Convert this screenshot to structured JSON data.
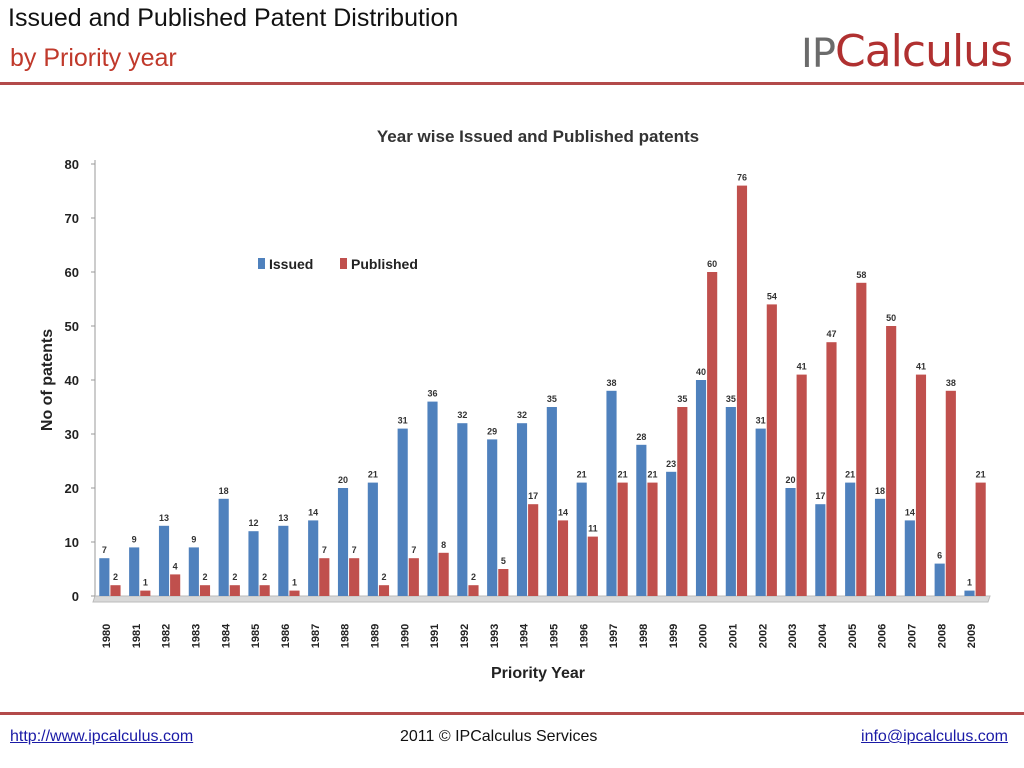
{
  "header": {
    "title": "Issued and Published Patent Distribution",
    "subtitle": "by Priority year",
    "logo": {
      "ip": "IP",
      "rest": "Calculus"
    }
  },
  "footer": {
    "website": "http://www.ipcalculus.com",
    "copyright": "2011 © IPCalculus Services",
    "email": "info@ipcalculus.com"
  },
  "colors": {
    "issued": "#4f81bd",
    "published": "#c0504d",
    "accent": "#b34a4a"
  },
  "chart_data": {
    "type": "bar",
    "title": "Year wise Issued and Published patents",
    "xlabel": "Priority Year",
    "ylabel": "No of patents",
    "ylim": [
      0,
      80
    ],
    "yticks": [
      0,
      10,
      20,
      30,
      40,
      50,
      60,
      70,
      80
    ],
    "grid": false,
    "legend_position": "top-left",
    "categories": [
      "1980",
      "1981",
      "1982",
      "1983",
      "1984",
      "1985",
      "1986",
      "1987",
      "1988",
      "1989",
      "1990",
      "1991",
      "1992",
      "1993",
      "1994",
      "1995",
      "1996",
      "1997",
      "1998",
      "1999",
      "2000",
      "2001",
      "2002",
      "2003",
      "2004",
      "2005",
      "2006",
      "2007",
      "2008",
      "2009"
    ],
    "series": [
      {
        "name": "Issued",
        "values": [
          7,
          9,
          13,
          9,
          18,
          12,
          13,
          14,
          20,
          21,
          31,
          36,
          32,
          29,
          32,
          35,
          21,
          38,
          28,
          23,
          40,
          35,
          31,
          20,
          17,
          21,
          18,
          14,
          6,
          1
        ]
      },
      {
        "name": "Published",
        "values": [
          2,
          1,
          4,
          2,
          2,
          2,
          1,
          7,
          7,
          2,
          7,
          8,
          2,
          5,
          17,
          14,
          11,
          21,
          21,
          35,
          60,
          76,
          54,
          41,
          47,
          58,
          50,
          41,
          38,
          21
        ]
      }
    ]
  }
}
